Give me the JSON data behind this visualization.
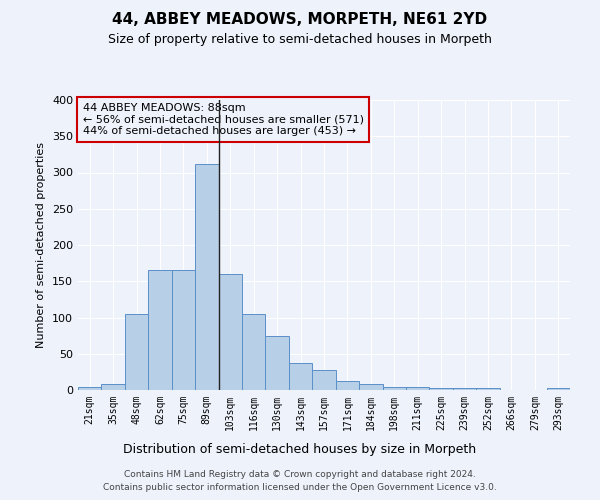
{
  "title": "44, ABBEY MEADOWS, MORPETH, NE61 2YD",
  "subtitle": "Size of property relative to semi-detached houses in Morpeth",
  "xlabel": "Distribution of semi-detached houses by size in Morpeth",
  "ylabel": "Number of semi-detached properties",
  "bin_labels": [
    "21sqm",
    "35sqm",
    "48sqm",
    "62sqm",
    "75sqm",
    "89sqm",
    "103sqm",
    "116sqm",
    "130sqm",
    "143sqm",
    "157sqm",
    "171sqm",
    "184sqm",
    "198sqm",
    "211sqm",
    "225sqm",
    "239sqm",
    "252sqm",
    "266sqm",
    "279sqm",
    "293sqm"
  ],
  "bin_values": [
    4,
    8,
    105,
    165,
    165,
    312,
    160,
    105,
    75,
    37,
    28,
    12,
    8,
    4,
    4,
    3,
    3,
    3,
    0,
    0,
    3
  ],
  "bar_color": "#b8cfe8",
  "bar_edge_color": "#5b8fc9",
  "property_bin_index": 5,
  "vline_color": "#222222",
  "annotation_text": "44 ABBEY MEADOWS: 88sqm\n← 56% of semi-detached houses are smaller (571)\n44% of semi-detached houses are larger (453) →",
  "annotation_box_edge": "#cc0000",
  "footer_line1": "Contains HM Land Registry data © Crown copyright and database right 2024.",
  "footer_line2": "Contains public sector information licensed under the Open Government Licence v3.0.",
  "bg_color": "#eef2fb",
  "grid_color": "#ffffff",
  "ylim": [
    0,
    400
  ],
  "yticks": [
    0,
    50,
    100,
    150,
    200,
    250,
    300,
    350,
    400
  ]
}
